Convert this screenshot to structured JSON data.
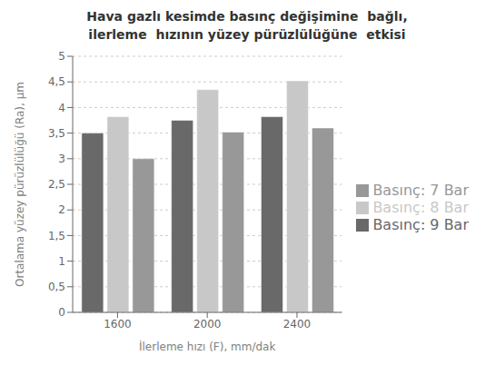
{
  "chart_data": {
    "type": "bar",
    "title": "Hava gazlı kesimde basınç değişimine  bağlı,\nilerleme  hızının yüzey pürüzlülüğüne  etkisi",
    "xlabel": "İlerleme hızı (F), mm/dak",
    "ylabel": "Ortalama yüzey pürüzlülüğü  (Ra), µm",
    "categories": [
      "1600",
      "2000",
      "2400"
    ],
    "series": [
      {
        "name": "Basınç: 9 Bar",
        "color": "#696969",
        "values": [
          3.5,
          3.75,
          3.82
        ]
      },
      {
        "name": "Basınç: 8 Bar",
        "color": "#c8c8c8",
        "values": [
          3.82,
          4.35,
          4.52
        ]
      },
      {
        "name": "Basınç: 7 Bar",
        "color": "#989898",
        "values": [
          3.0,
          3.52,
          3.6
        ]
      }
    ],
    "ylim": [
      0,
      5
    ],
    "yticks": [
      0,
      {
        "value": 0.5,
        "label": "0,5"
      },
      1,
      {
        "value": 1.5,
        "label": "1,5"
      },
      2,
      {
        "value": 2.5,
        "label": "2,5"
      },
      3,
      {
        "value": 3.5,
        "label": "3,5"
      },
      4,
      {
        "value": 4.5,
        "label": "4,5"
      },
      5
    ],
    "grid": true,
    "legend": "right"
  }
}
